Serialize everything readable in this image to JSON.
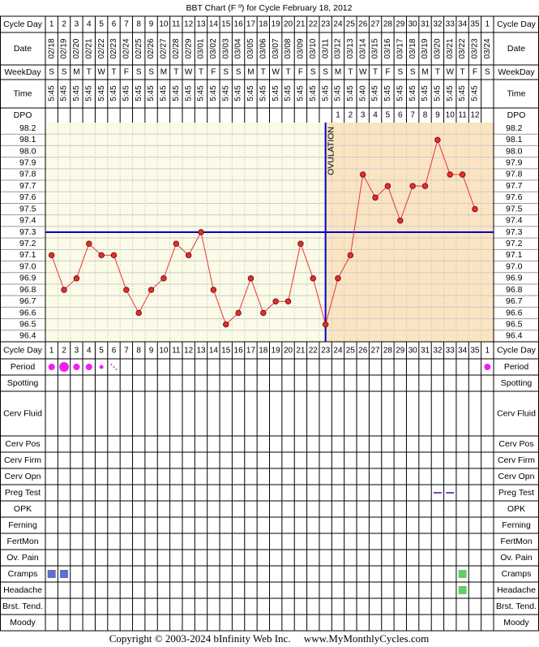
{
  "title": "BBT Chart (F º) for Cycle February 18, 2012",
  "row_labels": [
    "Cycle Day",
    "Date",
    "WeekDay",
    "Time",
    "DPO"
  ],
  "lower_labels": [
    "Period",
    "Spotting",
    "Cerv Fluid",
    "Cerv Pos",
    "Cerv Firm",
    "Cerv Opn",
    "Preg Test",
    "OPK",
    "Ferning",
    "FertMon",
    "Ov. Pain",
    "Cramps",
    "Headache",
    "Brst. Tend.",
    "Moody"
  ],
  "cycle_days": [
    1,
    2,
    3,
    4,
    5,
    6,
    7,
    8,
    9,
    10,
    11,
    12,
    13,
    14,
    15,
    16,
    17,
    18,
    19,
    20,
    21,
    22,
    23,
    24,
    25,
    26,
    27,
    28,
    29,
    30,
    31,
    32,
    33,
    34,
    35,
    1
  ],
  "dates": [
    "02/18",
    "02/19",
    "02/20",
    "02/21",
    "02/22",
    "02/23",
    "02/24",
    "02/25",
    "02/26",
    "02/27",
    "02/28",
    "02/29",
    "03/01",
    "03/02",
    "03/03",
    "03/04",
    "03/05",
    "03/06",
    "03/07",
    "03/08",
    "03/09",
    "03/10",
    "03/11",
    "03/12",
    "03/13",
    "03/14",
    "03/15",
    "03/16",
    "03/17",
    "03/18",
    "03/19",
    "03/20",
    "03/21",
    "03/22",
    "03/23",
    "03/24"
  ],
  "weekdays": [
    "S",
    "S",
    "M",
    "T",
    "W",
    "T",
    "F",
    "S",
    "S",
    "M",
    "T",
    "W",
    "T",
    "F",
    "S",
    "S",
    "M",
    "T",
    "W",
    "T",
    "F",
    "S",
    "S",
    "M",
    "T",
    "W",
    "T",
    "F",
    "S",
    "S",
    "M",
    "T",
    "W",
    "T",
    "F",
    "S"
  ],
  "times": [
    "5:45",
    "5:45",
    "5:45",
    "5:45",
    "5:45",
    "5:45",
    "5:45",
    "5:45",
    "5:45",
    "5:45",
    "5:45",
    "5:45",
    "5:45",
    "5:45",
    "5:45",
    "5:45",
    "5:45",
    "5:45",
    "5:45",
    "5:45",
    "5:45",
    "5:45",
    "5:45",
    "5:45",
    "5:45",
    "5:40",
    "5:45",
    "5:45",
    "5:45",
    "5:45",
    "5:45",
    "5:45",
    "5:45",
    "5:45",
    "5:45",
    null
  ],
  "dpo": [
    null,
    null,
    null,
    null,
    null,
    null,
    null,
    null,
    null,
    null,
    null,
    null,
    null,
    null,
    null,
    null,
    null,
    null,
    null,
    null,
    null,
    null,
    null,
    1,
    2,
    3,
    4,
    5,
    6,
    7,
    8,
    9,
    10,
    11,
    12,
    null
  ],
  "chart_data": {
    "type": "line",
    "values": [
      97.1,
      96.8,
      96.9,
      97.2,
      97.1,
      97.1,
      96.8,
      96.6,
      96.8,
      96.9,
      97.2,
      97.1,
      97.3,
      96.8,
      96.5,
      96.6,
      96.9,
      96.6,
      96.7,
      96.7,
      97.2,
      96.9,
      96.5,
      96.9,
      97.1,
      97.8,
      97.6,
      97.7,
      97.4,
      97.7,
      97.7,
      98.1,
      97.8,
      97.8,
      97.5,
      null
    ],
    "color": "#ee3333",
    "ylim": [
      96.35,
      98.25
    ],
    "yticks": [
      96.4,
      96.5,
      96.6,
      96.7,
      96.8,
      96.9,
      {
        "value": 97.0,
        "label": "97.0"
      },
      97.1,
      97.2,
      97.3,
      97.4,
      97.5,
      97.6,
      97.7,
      97.8,
      97.9,
      {
        "value": 98.0,
        "label": "98.0"
      },
      98.1,
      98.2
    ],
    "coverline": 97.3,
    "coverline_color": "#0000cc",
    "ovulation_day": 23,
    "annotation": "OVULATION"
  },
  "footer": "Copyright © 2003-2024 bInfinity Web Inc.     www.MyMonthlyCycles.com"
}
